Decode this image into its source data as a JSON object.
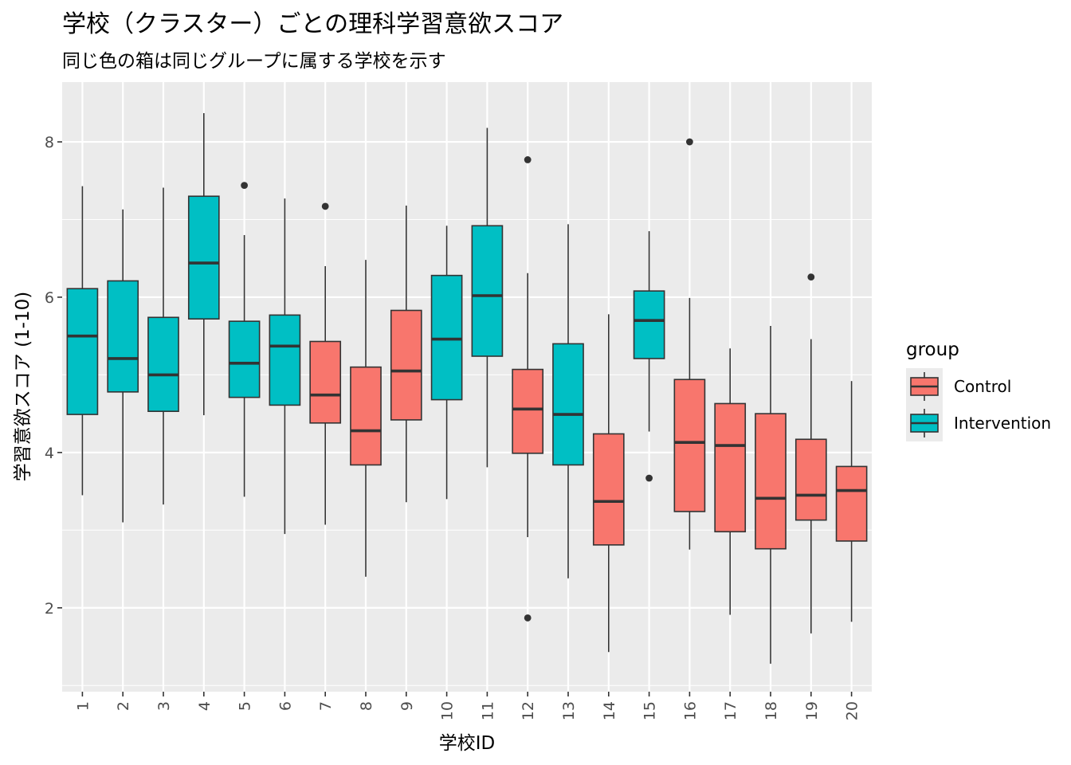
{
  "chart_data": {
    "type": "boxplot",
    "title": "学校（クラスター）ごとの理科学習意欲スコア",
    "subtitle": "同じ色の箱は同じグループに属する学校を示す",
    "xlabel": "学校ID",
    "ylabel": "学習意欲スコア (1-10)",
    "ylim": [
      0.92,
      8.77
    ],
    "yticks": [
      2,
      4,
      6,
      8
    ],
    "grid": true,
    "legend": {
      "title": "group",
      "position": "right",
      "entries": [
        {
          "name": "Control",
          "color": "#F8766D"
        },
        {
          "name": "Intervention",
          "color": "#00BFC4"
        }
      ]
    },
    "categories": [
      "1",
      "2",
      "3",
      "4",
      "5",
      "6",
      "7",
      "8",
      "9",
      "10",
      "11",
      "12",
      "13",
      "14",
      "15",
      "16",
      "17",
      "18",
      "19",
      "20"
    ],
    "boxes": [
      {
        "school": "1",
        "group": "Intervention",
        "min": 3.45,
        "q1": 4.49,
        "median": 5.5,
        "q3": 6.11,
        "max": 7.43,
        "outliers": []
      },
      {
        "school": "2",
        "group": "Intervention",
        "min": 3.1,
        "q1": 4.78,
        "median": 5.21,
        "q3": 6.21,
        "max": 7.13,
        "outliers": []
      },
      {
        "school": "3",
        "group": "Intervention",
        "min": 3.33,
        "q1": 4.53,
        "median": 5.0,
        "q3": 5.74,
        "max": 7.41,
        "outliers": []
      },
      {
        "school": "4",
        "group": "Intervention",
        "min": 4.48,
        "q1": 5.72,
        "median": 6.44,
        "q3": 7.3,
        "max": 8.37,
        "outliers": []
      },
      {
        "school": "5",
        "group": "Intervention",
        "min": 3.43,
        "q1": 4.71,
        "median": 5.15,
        "q3": 5.69,
        "max": 6.8,
        "outliers": [
          7.44
        ]
      },
      {
        "school": "6",
        "group": "Intervention",
        "min": 2.95,
        "q1": 4.61,
        "median": 5.37,
        "q3": 5.77,
        "max": 7.27,
        "outliers": []
      },
      {
        "school": "7",
        "group": "Control",
        "min": 3.07,
        "q1": 4.38,
        "median": 4.74,
        "q3": 5.43,
        "max": 6.4,
        "outliers": [
          7.17
        ]
      },
      {
        "school": "8",
        "group": "Control",
        "min": 2.4,
        "q1": 3.84,
        "median": 4.28,
        "q3": 5.1,
        "max": 6.48,
        "outliers": []
      },
      {
        "school": "9",
        "group": "Control",
        "min": 3.36,
        "q1": 4.42,
        "median": 5.05,
        "q3": 5.83,
        "max": 7.18,
        "outliers": []
      },
      {
        "school": "10",
        "group": "Intervention",
        "min": 3.4,
        "q1": 4.68,
        "median": 5.46,
        "q3": 6.28,
        "max": 6.92,
        "outliers": []
      },
      {
        "school": "11",
        "group": "Intervention",
        "min": 3.81,
        "q1": 5.24,
        "median": 6.02,
        "q3": 6.92,
        "max": 8.18,
        "outliers": []
      },
      {
        "school": "12",
        "group": "Control",
        "min": 2.91,
        "q1": 3.99,
        "median": 4.56,
        "q3": 5.07,
        "max": 6.31,
        "outliers": [
          7.77,
          1.87
        ]
      },
      {
        "school": "13",
        "group": "Intervention",
        "min": 2.38,
        "q1": 3.84,
        "median": 4.49,
        "q3": 5.4,
        "max": 6.94,
        "outliers": []
      },
      {
        "school": "14",
        "group": "Control",
        "min": 1.43,
        "q1": 2.81,
        "median": 3.37,
        "q3": 4.24,
        "max": 5.78,
        "outliers": []
      },
      {
        "school": "15",
        "group": "Intervention",
        "min": 4.27,
        "q1": 5.21,
        "median": 5.7,
        "q3": 6.08,
        "max": 6.85,
        "outliers": [
          3.67
        ]
      },
      {
        "school": "16",
        "group": "Control",
        "min": 2.75,
        "q1": 3.24,
        "median": 4.13,
        "q3": 4.94,
        "max": 5.99,
        "outliers": [
          8.0
        ]
      },
      {
        "school": "17",
        "group": "Control",
        "min": 1.91,
        "q1": 2.98,
        "median": 4.09,
        "q3": 4.63,
        "max": 5.34,
        "outliers": []
      },
      {
        "school": "18",
        "group": "Control",
        "min": 1.28,
        "q1": 2.76,
        "median": 3.41,
        "q3": 4.5,
        "max": 5.63,
        "outliers": []
      },
      {
        "school": "19",
        "group": "Control",
        "min": 1.67,
        "q1": 3.13,
        "median": 3.45,
        "q3": 4.17,
        "max": 5.46,
        "outliers": [
          6.26
        ]
      },
      {
        "school": "20",
        "group": "Control",
        "min": 1.82,
        "q1": 2.86,
        "median": 3.51,
        "q3": 3.82,
        "max": 4.92,
        "outliers": []
      }
    ]
  }
}
